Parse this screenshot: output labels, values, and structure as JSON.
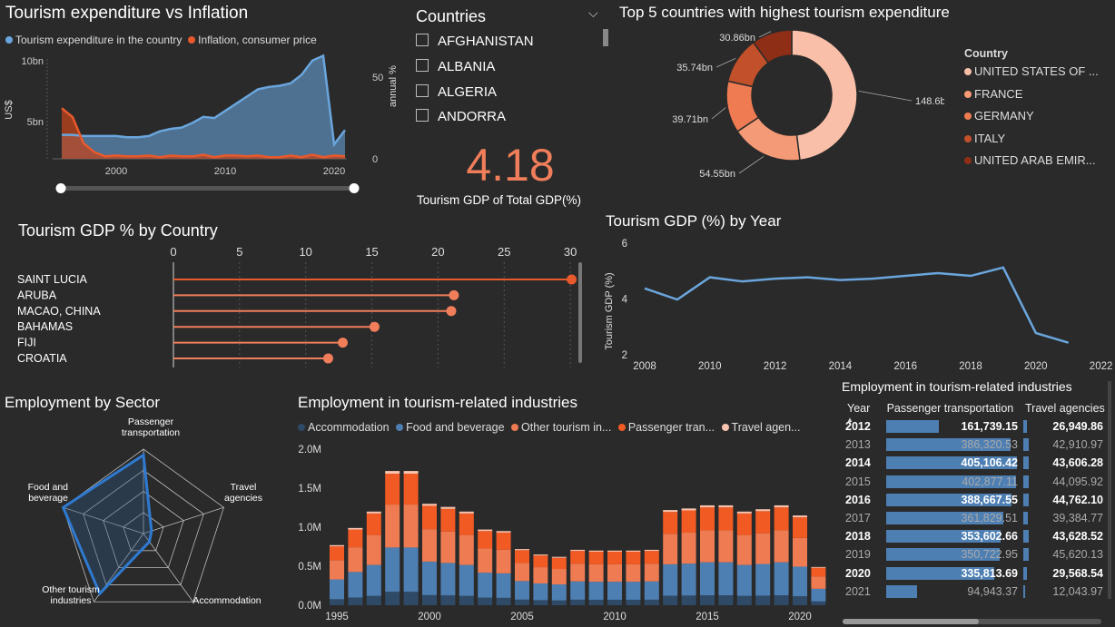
{
  "colors": {
    "blue": "#5b8ec2",
    "orange": "#e8592c",
    "accent": "#f07e5a",
    "text": "#ffffff",
    "muted": "#cccccc"
  },
  "exp_infl": {
    "title": "Tourism expenditure vs Inflation",
    "legend": [
      {
        "label": "Tourism expenditure in the country",
        "color": "#6aa6dd"
      },
      {
        "label": "Inflation, consumer price",
        "color": "#e8592c"
      }
    ],
    "y_left_label": "US$",
    "y_right_label": "annual %",
    "y_left_ticks": [
      "10bn",
      "5bn"
    ],
    "y_right_ticks": [
      "50",
      "0"
    ],
    "x_ticks": [
      "2000",
      "2010",
      "2020"
    ],
    "chart_data": {
      "type": "area",
      "x": [
        1995,
        1996,
        1997,
        1998,
        1999,
        2000,
        2001,
        2002,
        2003,
        2004,
        2005,
        2006,
        2007,
        2008,
        2009,
        2010,
        2011,
        2012,
        2013,
        2014,
        2015,
        2016,
        2017,
        2018,
        2019,
        2020,
        2021
      ],
      "series": [
        {
          "name": "Tourism expenditure in the country",
          "values": [
            2.0,
            2.0,
            1.9,
            1.9,
            1.9,
            1.9,
            1.8,
            1.8,
            1.9,
            2.3,
            2.5,
            2.6,
            3.0,
            3.5,
            3.4,
            4.0,
            4.6,
            5.2,
            5.8,
            6.0,
            6.1,
            6.3,
            7.0,
            8.2,
            8.6,
            1.2,
            2.4
          ]
        },
        {
          "name": "Inflation, consumer price",
          "values": [
            62,
            51,
            19,
            8,
            3,
            4,
            3,
            3,
            4,
            2,
            4,
            3,
            3,
            5,
            2,
            4,
            4,
            3,
            4,
            2,
            2,
            4,
            2,
            5,
            2,
            4,
            3
          ]
        }
      ]
    }
  },
  "countries": {
    "header": "Countries",
    "chevron": "chevron-down-icon",
    "items": [
      {
        "label": "AFGHANISTAN"
      },
      {
        "label": "ALBANIA"
      },
      {
        "label": "ALGERIA"
      },
      {
        "label": "ANDORRA"
      }
    ]
  },
  "kpi": {
    "value": "4.18",
    "label": "Tourism GDP of Total GDP(%)"
  },
  "top5": {
    "title": "Top 5 countries with highest tourism expenditure",
    "legend_title": "Country",
    "chart_data": {
      "type": "pie",
      "categories": [
        "UNITED STATES OF ...",
        "FRANCE",
        "GERMANY",
        "ITALY",
        "UNITED ARAB EMIR..."
      ],
      "values": [
        148.6,
        54.55,
        39.71,
        35.74,
        30.86
      ],
      "labels": [
        "148.6bn",
        "54.55bn",
        "39.71bn",
        "35.74bn",
        "30.86bn"
      ],
      "colors": [
        "#f9bfa8",
        "#f59a76",
        "#ee7b52",
        "#c2502a",
        "#8f2e16"
      ]
    }
  },
  "gdp_country": {
    "title": "Tourism GDP % by Country",
    "x_ticks": [
      "0",
      "5",
      "10",
      "15",
      "20",
      "25",
      "30"
    ],
    "chart_data": {
      "type": "bar",
      "categories": [
        "SAINT LUCIA",
        "ARUBA",
        "MACAO, CHINA",
        "BAHAMAS",
        "FIJI",
        "CROATIA"
      ],
      "values": [
        30.1,
        21.2,
        21.0,
        15.2,
        12.8,
        11.7
      ],
      "xlim": [
        0,
        30
      ]
    }
  },
  "gdp_year": {
    "title": "Tourism GDP (%) by Year",
    "ylabel": "Tourism GDP (%)",
    "y_ticks": [
      "6",
      "4",
      "2"
    ],
    "x_ticks": [
      "2008",
      "2010",
      "2012",
      "2014",
      "2016",
      "2018",
      "2020",
      "2022"
    ],
    "chart_data": {
      "type": "line",
      "x": [
        2008,
        2009,
        2010,
        2011,
        2012,
        2013,
        2014,
        2015,
        2016,
        2017,
        2018,
        2019,
        2020,
        2021
      ],
      "values": [
        4.35,
        3.95,
        4.75,
        4.6,
        4.7,
        4.75,
        4.65,
        4.7,
        4.8,
        4.9,
        4.8,
        5.1,
        2.75,
        2.4
      ],
      "ylim": [
        2,
        6
      ],
      "xlim": [
        2008,
        2022
      ]
    }
  },
  "sector": {
    "title": "Employment by Sector",
    "chart_data": {
      "type": "radar",
      "categories": [
        "Passenger transportation",
        "Travel agencies",
        "Accommodation",
        "Other tourism industries",
        "Food and beverage"
      ],
      "values": [
        0.93,
        0.1,
        0.12,
        0.88,
        1.0
      ]
    }
  },
  "stacked": {
    "title": "Employment in tourism-related industries",
    "legend": [
      {
        "label": "Accommodation",
        "color": "#2f4a66"
      },
      {
        "label": "Food and beverage",
        "color": "#4e7fb3"
      },
      {
        "label": "Other tourism in...",
        "color": "#ee7b52"
      },
      {
        "label": "Passenger tran...",
        "color": "#f25a24"
      },
      {
        "label": "Travel agen...",
        "color": "#f9c3ad"
      }
    ],
    "y_ticks": [
      "2.0M",
      "1.5M",
      "1.0M",
      "0.5M",
      "0.0M"
    ],
    "x_ticks": [
      "1995",
      "2000",
      "2005",
      "2010",
      "2015",
      "2020"
    ],
    "chart_data": {
      "type": "bar",
      "x": [
        1995,
        1996,
        1997,
        1998,
        1999,
        2000,
        2001,
        2002,
        2003,
        2004,
        2005,
        2006,
        2007,
        2008,
        2009,
        2010,
        2011,
        2012,
        2013,
        2014,
        2015,
        2016,
        2017,
        2018,
        2019,
        2020,
        2021
      ],
      "totals": [
        0.77,
        0.99,
        1.2,
        1.72,
        1.72,
        1.3,
        1.26,
        1.2,
        0.97,
        0.95,
        0.72,
        0.65,
        0.62,
        0.71,
        0.7,
        0.7,
        0.7,
        0.71,
        1.22,
        1.24,
        1.28,
        1.28,
        1.2,
        1.23,
        1.28,
        1.15,
        0.49
      ],
      "stack_share": [
        0.1,
        0.33,
        0.32,
        0.23,
        0.02
      ]
    }
  },
  "table": {
    "title": "Employment in tourism-related industries",
    "columns": [
      "Year",
      "Passenger transportation",
      "Travel agencies"
    ],
    "rows": [
      {
        "year": "2012",
        "pt": "161,739.15",
        "ta": "26,949.86",
        "ptv": 161739.15,
        "tav": 26949.86,
        "bold": true
      },
      {
        "year": "2013",
        "pt": "386,320.53",
        "ta": "42,910.97",
        "ptv": 386320.53,
        "tav": 42910.97,
        "bold": false
      },
      {
        "year": "2014",
        "pt": "405,106.42",
        "ta": "43,606.28",
        "ptv": 405106.42,
        "tav": 43606.28,
        "bold": true
      },
      {
        "year": "2015",
        "pt": "402,877.11",
        "ta": "44,095.92",
        "ptv": 402877.11,
        "tav": 44095.92,
        "bold": false
      },
      {
        "year": "2016",
        "pt": "388,667.55",
        "ta": "44,762.10",
        "ptv": 388667.55,
        "tav": 44762.1,
        "bold": true
      },
      {
        "year": "2017",
        "pt": "361,829.51",
        "ta": "39,384.77",
        "ptv": 361829.51,
        "tav": 39384.77,
        "bold": false
      },
      {
        "year": "2018",
        "pt": "353,602.66",
        "ta": "43,628.52",
        "ptv": 353602.66,
        "tav": 43628.52,
        "bold": true
      },
      {
        "year": "2019",
        "pt": "350,722.95",
        "ta": "45,620.13",
        "ptv": 350722.95,
        "tav": 45620.13,
        "bold": false
      },
      {
        "year": "2020",
        "pt": "335,813.69",
        "ta": "29,568.54",
        "ptv": 335813.69,
        "tav": 29568.54,
        "bold": true
      },
      {
        "year": "2021",
        "pt": "94,943.37",
        "ta": "12,043.97",
        "ptv": 94943.37,
        "tav": 12043.97,
        "bold": false
      }
    ]
  }
}
